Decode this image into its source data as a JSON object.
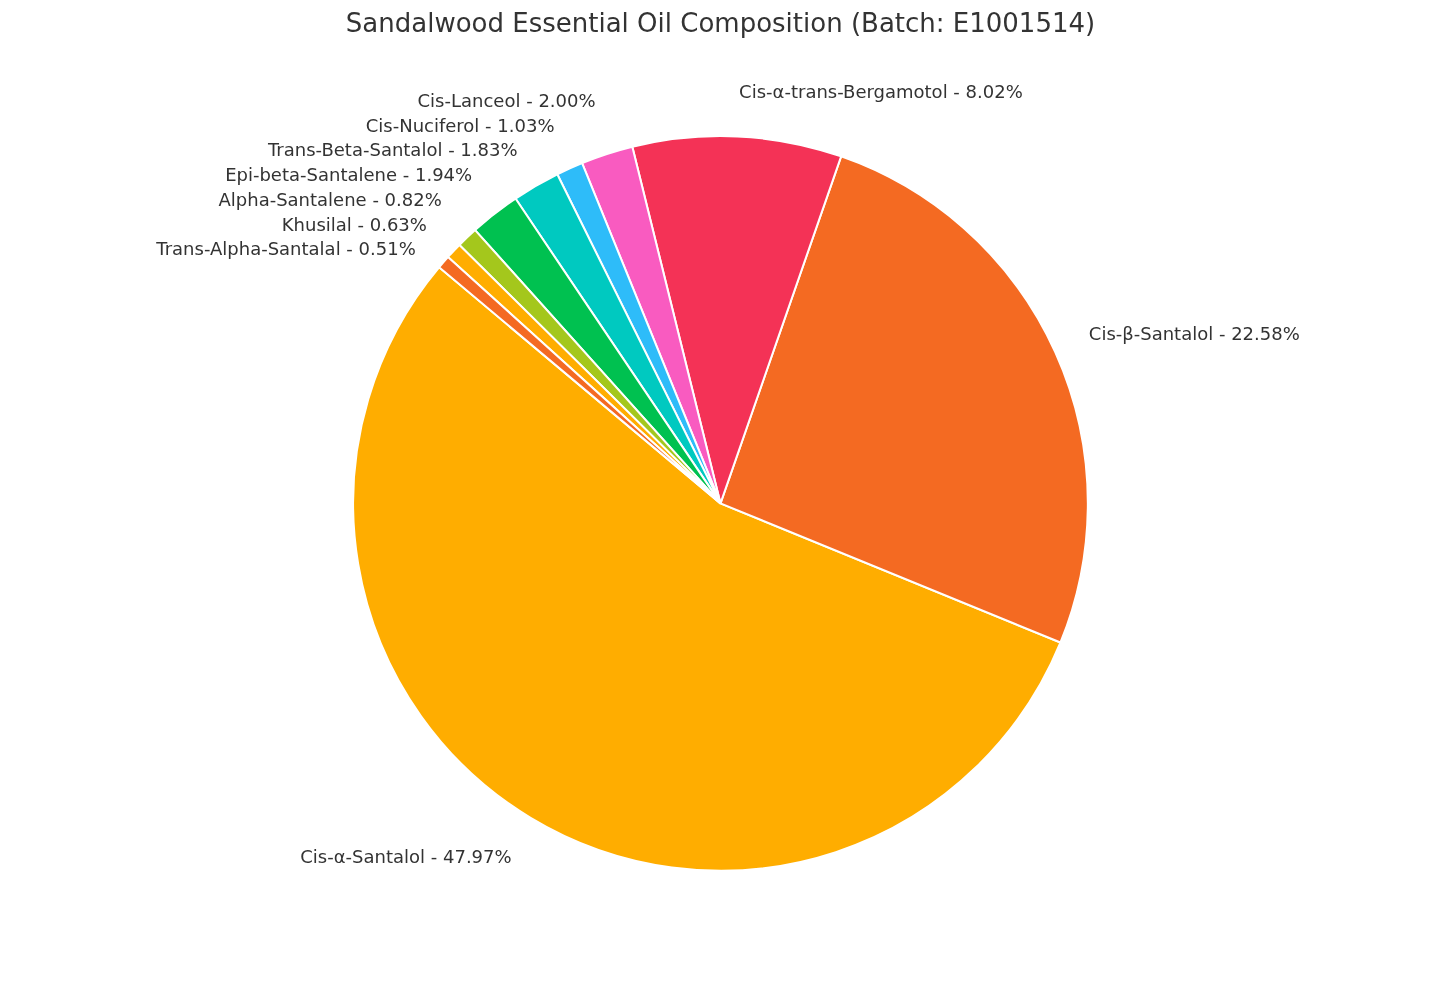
{
  "chart_data": {
    "type": "pie",
    "title": "Sandalwood Essential Oil Composition (Batch: E1001514)",
    "categories": [
      "Cis-α-Santalol",
      "Cis-β-Santalol",
      "Cis-α-trans-Bergamotol",
      "Cis-Lanceol",
      "Cis-Nuciferol",
      "Trans-Beta-Santalol",
      "Epi-beta-Santalene",
      "Alpha-Santalene",
      "Khusilal",
      "Trans-Alpha-Santalal"
    ],
    "value_labels": [
      "47.97%",
      "22.58%",
      "8.02%",
      "2.00%",
      "1.03%",
      "1.83%",
      "1.94%",
      "0.82%",
      "0.63%",
      "0.51%"
    ],
    "values": [
      47.97,
      22.58,
      8.02,
      2.0,
      1.03,
      1.83,
      1.94,
      0.82,
      0.63,
      0.51
    ],
    "colors": [
      "#ffad00",
      "#f46a22",
      "#f43256",
      "#f95bc0",
      "#2ebcf9",
      "#00c9c0",
      "#00c150",
      "#a4c71c",
      "#ffad00",
      "#f46a22"
    ]
  }
}
